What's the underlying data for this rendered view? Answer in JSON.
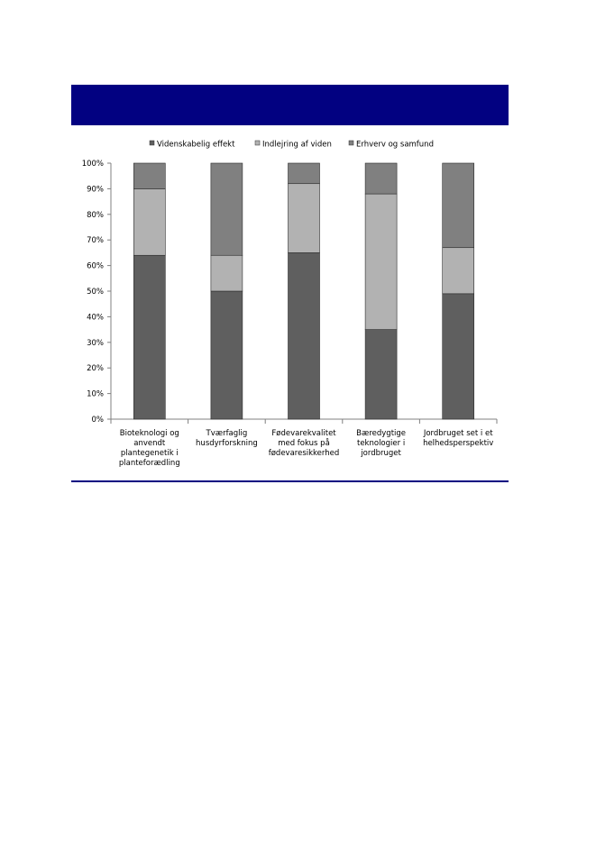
{
  "banner": {
    "color": "#020181"
  },
  "chart_data": {
    "type": "bar",
    "stacked": true,
    "percent": true,
    "categories": [
      [
        "Bioteknologi og",
        "anvendt",
        "plantegenetik i",
        "planteforædling"
      ],
      [
        "Tværfaglig",
        "husdyrforskning"
      ],
      [
        "Fødevarekvalitet",
        "med fokus på",
        "fødevaresikkerhed"
      ],
      [
        "Bæredygtige",
        "teknologier i",
        "jordbruget"
      ],
      [
        "Jordbruget set i et",
        "helhedsperspektiv"
      ]
    ],
    "series": [
      {
        "name": "Videnskabelig effekt",
        "color": "#5f5f5f",
        "values": [
          64,
          50,
          65,
          35,
          49
        ]
      },
      {
        "name": "Indlejring af viden",
        "color": "#b2b2b2",
        "values": [
          26,
          14,
          27,
          53,
          18
        ]
      },
      {
        "name": "Erhverv og samfund",
        "color": "#808080",
        "values": [
          10,
          36,
          8,
          12,
          33
        ]
      }
    ],
    "ylim": [
      0,
      100
    ],
    "yticks": [
      "0%",
      "10%",
      "20%",
      "30%",
      "40%",
      "50%",
      "60%",
      "70%",
      "80%",
      "90%",
      "100%"
    ],
    "grid": false,
    "legend_position": "top"
  }
}
